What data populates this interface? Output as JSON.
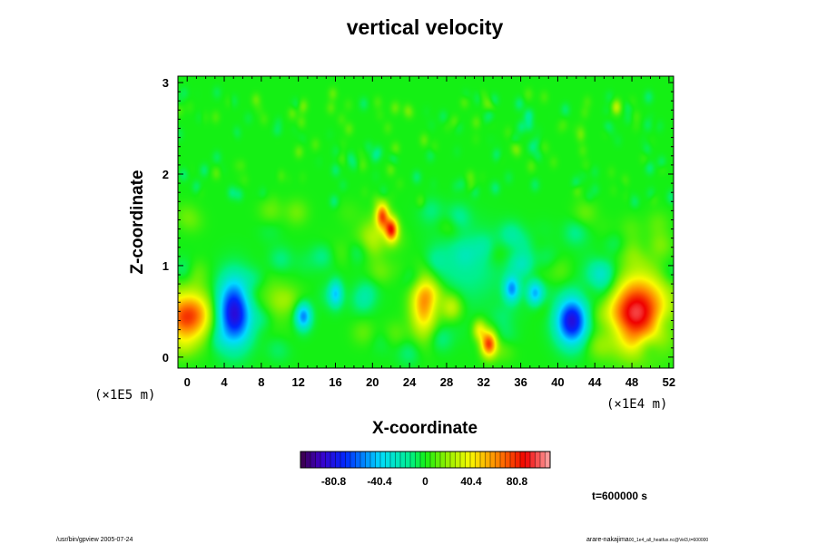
{
  "chart_data": {
    "type": "heatmap",
    "title": "vertical velocity",
    "xlabel": "X-coordinate",
    "ylabel": "Z-coordinate",
    "x_scale_label": "(×1E4 m)",
    "y_scale_label": "(×1E5 m)",
    "xlim": [
      -1,
      52.5
    ],
    "ylim": [
      -0.12,
      3.07
    ],
    "x_ticks": [
      0,
      4,
      8,
      12,
      16,
      20,
      24,
      28,
      32,
      36,
      40,
      44,
      48,
      52
    ],
    "x_tick_labels": [
      "0",
      "4",
      "8",
      "12",
      "16",
      "20",
      "24",
      "28",
      "32",
      "36",
      "40",
      "44",
      "48",
      "52"
    ],
    "y_ticks": [
      0,
      1,
      2,
      3
    ],
    "y_tick_labels": [
      "0",
      "1",
      "2",
      "3"
    ],
    "colorbar": {
      "min": -110,
      "max": 110,
      "ticks": [
        -80.8,
        -40.4,
        0,
        40.4,
        80.8
      ],
      "tick_labels": [
        "-80.8",
        "-40.4",
        "0",
        "40.4",
        "80.8"
      ]
    },
    "features": [
      {
        "x": 0.0,
        "z": 0.45,
        "amp": 75,
        "sx": 1.8,
        "sz": 0.2
      },
      {
        "x": 5.0,
        "z": 0.5,
        "amp": -85,
        "sx": 1.3,
        "sz": 0.25
      },
      {
        "x": 12.5,
        "z": 0.45,
        "amp": -55,
        "sx": 0.6,
        "sz": 0.1
      },
      {
        "x": 16.0,
        "z": 0.7,
        "amp": -35,
        "sx": 0.5,
        "sz": 0.1
      },
      {
        "x": 21.0,
        "z": 1.55,
        "amp": 70,
        "sx": 0.5,
        "sz": 0.1
      },
      {
        "x": 22.0,
        "z": 1.4,
        "amp": 80,
        "sx": 0.5,
        "sz": 0.09
      },
      {
        "x": 20.0,
        "z": 1.3,
        "amp": 25,
        "sx": 1.0,
        "sz": 0.15
      },
      {
        "x": 25.5,
        "z": 0.6,
        "amp": 60,
        "sx": 1.0,
        "sz": 0.25
      },
      {
        "x": 28.5,
        "z": 0.55,
        "amp": 30,
        "sx": 0.8,
        "sz": 0.1
      },
      {
        "x": 32.5,
        "z": 0.15,
        "amp": 80,
        "sx": 0.6,
        "sz": 0.1
      },
      {
        "x": 31.5,
        "z": 0.3,
        "amp": 35,
        "sx": 0.5,
        "sz": 0.08
      },
      {
        "x": 35.0,
        "z": 0.75,
        "amp": -50,
        "sx": 0.6,
        "sz": 0.1
      },
      {
        "x": 37.5,
        "z": 0.7,
        "amp": -45,
        "sx": 0.6,
        "sz": 0.1
      },
      {
        "x": 41.5,
        "z": 0.4,
        "amp": -85,
        "sx": 1.2,
        "sz": 0.18
      },
      {
        "x": 48.5,
        "z": 0.5,
        "amp": 95,
        "sx": 2.3,
        "sz": 0.28
      },
      {
        "x": 45.0,
        "z": 0.9,
        "amp": -20,
        "sx": 1.5,
        "sz": 0.2
      },
      {
        "x": 9.0,
        "z": 0.6,
        "amp": 15,
        "sx": 1.5,
        "sz": 0.2
      },
      {
        "x": 30.0,
        "z": 1.0,
        "amp": -15,
        "sx": 3.0,
        "sz": 0.3
      }
    ]
  },
  "time_label": "t=600000 s",
  "footer": {
    "left": "/usr/bin/gpview 2005-07-24",
    "right_main": "arare-nakajima",
    "right_small": "00_1e4_all_heatfux.nc@Vel3,t=600000"
  }
}
